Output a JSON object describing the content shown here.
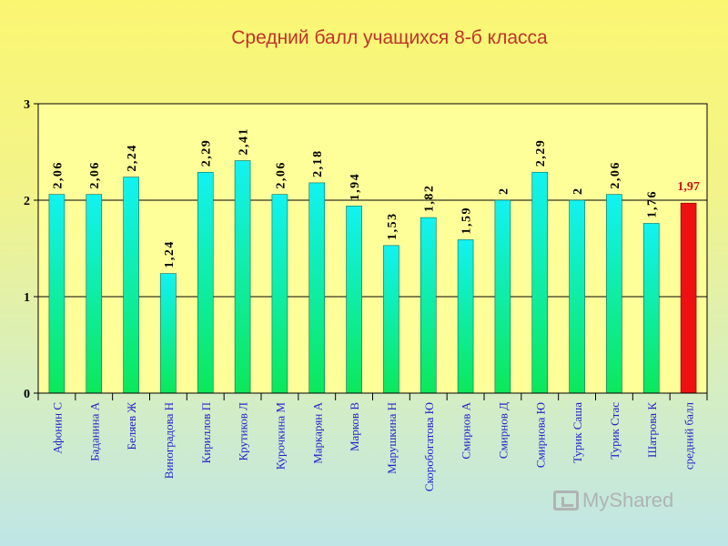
{
  "chart_data": {
    "type": "bar",
    "title": "Средний балл учащихся 8-б класса",
    "xlabel": "",
    "ylabel": "",
    "ylim": [
      0,
      3
    ],
    "yticks": [
      "0",
      "1",
      "2",
      "3"
    ],
    "grid": true,
    "legend": "none",
    "categories": [
      "Афонин С",
      "Баданина А",
      "Беляев Ж",
      "Виноградова Н",
      "Кириллов П",
      "Крутиков Л",
      "Курочкина М",
      "Маркарян А",
      "Марков В",
      "Марушкина Н",
      "Скоробогатова Ю",
      "Смирнов А",
      "Смирнов Д",
      "Смирнова Ю",
      "Турик Саша",
      "Турик Стас",
      "Шатрова К",
      "средний балл"
    ],
    "values": [
      2.06,
      2.06,
      2.24,
      1.24,
      2.29,
      2.41,
      2.06,
      2.18,
      1.94,
      1.53,
      1.82,
      1.59,
      2,
      2.29,
      2,
      2.06,
      1.76,
      1.97
    ],
    "labels": [
      "2,06",
      "2,06",
      "2,24",
      "1,24",
      "2,29",
      "2,41",
      "2,06",
      "2,18",
      "1,94",
      "1,53",
      "1,82",
      "1,59",
      "2",
      "2,29",
      "2",
      "2,06",
      "1,76",
      "1,97"
    ],
    "highlight_index": 17,
    "colors": {
      "bar_top": "#12f2f2",
      "bar_bottom": "#0ce85a",
      "highlight": "#ee1111",
      "highlight_label": "#cc1111",
      "category_label": "#2222cc",
      "plot_bg": "#ffff9a",
      "title": "#c0332b"
    }
  },
  "watermark": {
    "text": "MyShared"
  }
}
